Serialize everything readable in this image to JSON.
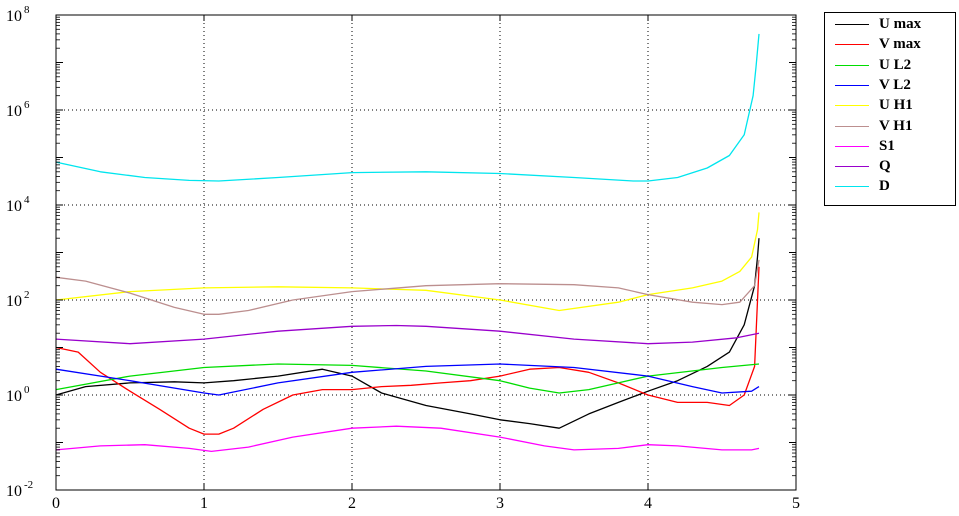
{
  "chart_data": {
    "type": "line",
    "title": "",
    "xlabel": "",
    "ylabel": "",
    "xlim": [
      0,
      5
    ],
    "ylim": [
      0.01,
      100000000
    ],
    "yscale": "log",
    "grid": true,
    "legend_position": "outside-top-right",
    "xticks": [
      0,
      1,
      2,
      3,
      4,
      5
    ],
    "xtick_labels": [
      "0",
      "1",
      "2",
      "3",
      "4",
      "5"
    ],
    "yticks": [
      {
        "value": 0.01,
        "base": "10",
        "exp": "-2"
      },
      {
        "value": 1,
        "base": "10",
        "exp": "0"
      },
      {
        "value": 100,
        "base": "10",
        "exp": "2"
      },
      {
        "value": 10000,
        "base": "10",
        "exp": "4"
      },
      {
        "value": 1000000,
        "base": "10",
        "exp": "6"
      },
      {
        "value": 100000000,
        "base": "10",
        "exp": "8"
      }
    ],
    "series": [
      {
        "name": "U max",
        "color": "#000000",
        "x": [
          0,
          0.2,
          0.5,
          0.8,
          1.0,
          1.2,
          1.5,
          1.8,
          2.0,
          2.2,
          2.5,
          2.8,
          3.0,
          3.2,
          3.4,
          3.6,
          3.8,
          4.0,
          4.2,
          4.4,
          4.55,
          4.65,
          4.72,
          4.74,
          4.75
        ],
        "y": [
          1.0,
          1.5,
          1.8,
          1.9,
          1.8,
          2.0,
          2.5,
          3.5,
          2.5,
          1.1,
          0.6,
          0.4,
          0.3,
          0.25,
          0.2,
          0.4,
          0.7,
          1.2,
          2.0,
          4.0,
          8.0,
          30,
          200,
          800,
          2000
        ]
      },
      {
        "name": "V max",
        "color": "#ff0000",
        "x": [
          0,
          0.15,
          0.3,
          0.5,
          0.7,
          0.9,
          1.0,
          1.1,
          1.2,
          1.4,
          1.6,
          1.8,
          2.0,
          2.2,
          2.4,
          2.6,
          2.8,
          3.0,
          3.2,
          3.4,
          3.6,
          3.8,
          4.0,
          4.2,
          4.4,
          4.55,
          4.65,
          4.72,
          4.75
        ],
        "y": [
          10,
          8,
          3,
          1.2,
          0.5,
          0.2,
          0.15,
          0.15,
          0.2,
          0.5,
          1.0,
          1.3,
          1.3,
          1.5,
          1.6,
          1.8,
          2.0,
          2.5,
          3.5,
          3.8,
          3.0,
          1.8,
          1.0,
          0.7,
          0.7,
          0.6,
          1.0,
          4.0,
          500
        ]
      },
      {
        "name": "U L2",
        "color": "#00dd00",
        "x": [
          0,
          0.5,
          1.0,
          1.5,
          2.0,
          2.5,
          3.0,
          3.2,
          3.4,
          3.6,
          4.0,
          4.5,
          4.75
        ],
        "y": [
          1.3,
          2.5,
          3.8,
          4.5,
          4.2,
          3.2,
          2.0,
          1.4,
          1.1,
          1.3,
          2.5,
          3.8,
          4.5
        ]
      },
      {
        "name": "V L2",
        "color": "#0000ff",
        "x": [
          0,
          0.5,
          1.0,
          1.1,
          1.5,
          2.0,
          2.5,
          3.0,
          3.5,
          4.0,
          4.3,
          4.5,
          4.7,
          4.75
        ],
        "y": [
          3.5,
          2.0,
          1.1,
          1.0,
          1.8,
          3.0,
          4.0,
          4.5,
          3.8,
          2.5,
          1.5,
          1.1,
          1.2,
          1.5
        ]
      },
      {
        "name": "U H1",
        "color": "#ffff00",
        "x": [
          0,
          0.5,
          1.0,
          1.5,
          2.0,
          2.5,
          3.0,
          3.4,
          3.8,
          4.0,
          4.3,
          4.5,
          4.62,
          4.7,
          4.74,
          4.75
        ],
        "y": [
          100,
          150,
          180,
          190,
          180,
          160,
          100,
          60,
          90,
          130,
          180,
          250,
          400,
          800,
          3000,
          7000
        ]
      },
      {
        "name": "V H1",
        "color": "#bc8f8f",
        "x": [
          0,
          0.2,
          0.5,
          0.8,
          1.0,
          1.1,
          1.3,
          1.6,
          2.0,
          2.5,
          3.0,
          3.5,
          3.8,
          4.0,
          4.3,
          4.5,
          4.62,
          4.72,
          4.75
        ],
        "y": [
          300,
          250,
          140,
          70,
          50,
          50,
          60,
          100,
          150,
          200,
          220,
          210,
          180,
          130,
          90,
          80,
          90,
          200,
          700
        ]
      },
      {
        "name": "S1",
        "color": "#ff00ff",
        "x": [
          0,
          0.3,
          0.6,
          0.9,
          1.05,
          1.3,
          1.6,
          2.0,
          2.3,
          2.6,
          3.0,
          3.3,
          3.5,
          3.8,
          4.0,
          4.2,
          4.5,
          4.7,
          4.75
        ],
        "y": [
          0.07,
          0.085,
          0.09,
          0.075,
          0.065,
          0.08,
          0.13,
          0.2,
          0.22,
          0.2,
          0.13,
          0.085,
          0.07,
          0.075,
          0.09,
          0.085,
          0.07,
          0.07,
          0.075
        ]
      },
      {
        "name": "Q",
        "color": "#9900cc",
        "x": [
          0,
          0.5,
          1.0,
          1.5,
          2.0,
          2.3,
          2.5,
          3.0,
          3.5,
          4.0,
          4.3,
          4.6,
          4.75
        ],
        "y": [
          15,
          12,
          15,
          22,
          28,
          29,
          28,
          22,
          15,
          12,
          13,
          16,
          20
        ]
      },
      {
        "name": "D",
        "color": "#00e5ee",
        "x": [
          0,
          0.3,
          0.6,
          0.9,
          1.1,
          1.5,
          2.0,
          2.5,
          3.0,
          3.5,
          3.9,
          4.0,
          4.2,
          4.4,
          4.55,
          4.65,
          4.71,
          4.73,
          4.75
        ],
        "y": [
          80000,
          50000,
          38000,
          33000,
          32000,
          38000,
          48000,
          50000,
          46000,
          38000,
          32000,
          32000,
          38000,
          60000,
          110000,
          300000,
          2000000,
          8000000,
          40000000
        ]
      }
    ]
  }
}
